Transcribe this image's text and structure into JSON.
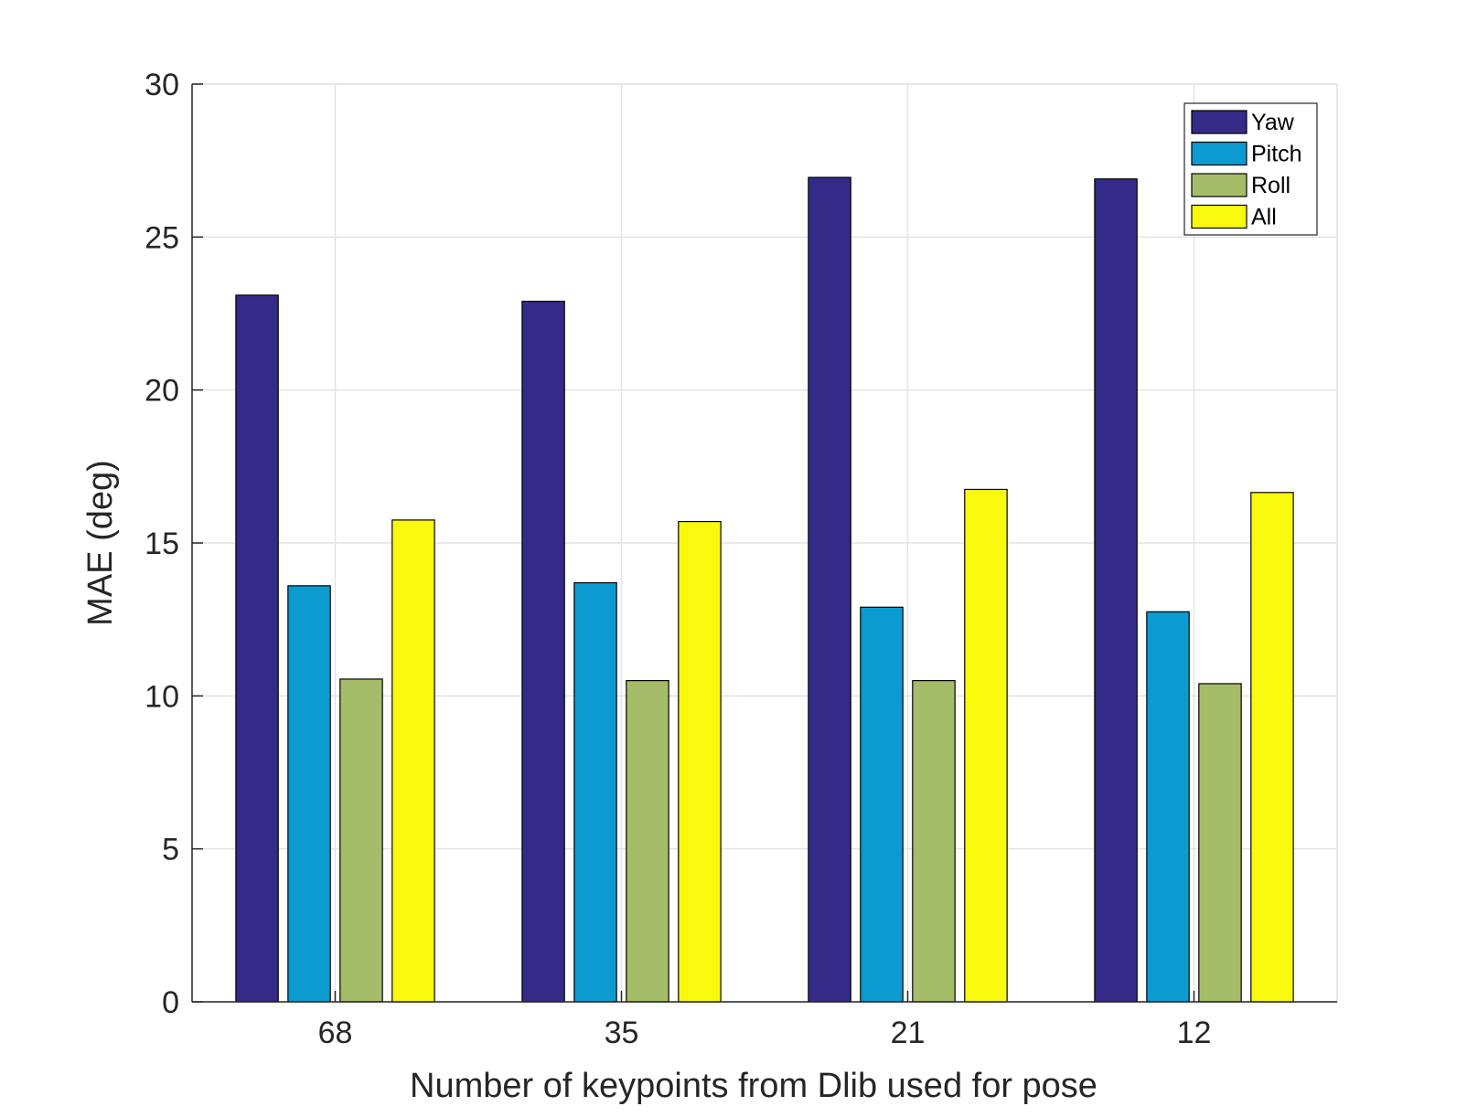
{
  "chart_data": {
    "type": "bar",
    "title": "",
    "xlabel": "Number of keypoints from Dlib used for pose",
    "ylabel": "MAE (deg)",
    "categories": [
      "68",
      "35",
      "21",
      "12"
    ],
    "ylim": [
      0,
      30
    ],
    "yticks": [
      "0",
      "5",
      "10",
      "15",
      "20",
      "25",
      "30"
    ],
    "grid": true,
    "legend_position": "top-right",
    "series": [
      {
        "name": "Yaw",
        "color": "#352a87",
        "values": [
          23.1,
          22.9,
          26.95,
          26.9
        ]
      },
      {
        "name": "Pitch",
        "color": "#0b9bd1",
        "values": [
          13.6,
          13.7,
          12.9,
          12.75
        ]
      },
      {
        "name": "Roll",
        "color": "#a5bd68",
        "values": [
          10.55,
          10.5,
          10.5,
          10.4
        ]
      },
      {
        "name": "All",
        "color": "#f9f90e",
        "values": [
          15.75,
          15.7,
          16.75,
          16.65
        ]
      }
    ]
  }
}
